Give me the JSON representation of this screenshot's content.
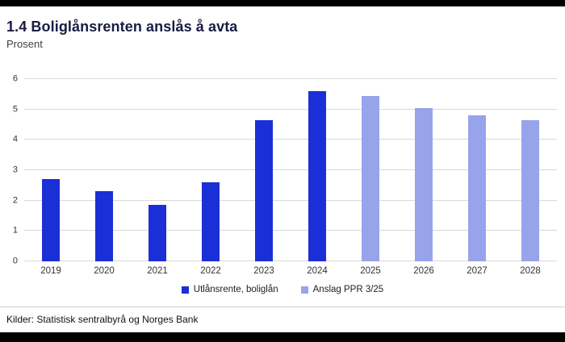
{
  "page": {
    "title": "1.4 Boliglånsrenten anslås å avta",
    "subtitle": "Prosent",
    "source": "Kilder: Statistisk sentralbyrå og Norges Bank"
  },
  "chart_data": {
    "type": "bar",
    "categories": [
      "2019",
      "2020",
      "2021",
      "2022",
      "2023",
      "2024",
      "2025",
      "2026",
      "2027",
      "2028"
    ],
    "series": [
      {
        "name": "Utlånsrente, boliglån",
        "color": "#1b2fd6",
        "values": [
          2.7,
          2.3,
          1.85,
          2.6,
          4.65,
          5.6,
          null,
          null,
          null,
          null
        ]
      },
      {
        "name": "Anslag PPR 3/25",
        "color": "#97a4ea",
        "values": [
          null,
          null,
          null,
          null,
          null,
          null,
          5.45,
          5.05,
          4.8,
          4.65
        ]
      }
    ],
    "title": "1.4 Boliglånsrenten anslås å avta",
    "xlabel": "",
    "ylabel": "Prosent",
    "ylim": [
      0,
      6
    ],
    "yticks": [
      0,
      1,
      2,
      3,
      4,
      5,
      6
    ],
    "grid": true,
    "legend_position": "bottom"
  },
  "colors": {
    "actual": "#1b2fd6",
    "forecast": "#97a4ea",
    "grid": "#d9d9d9",
    "frame": "#000000"
  }
}
